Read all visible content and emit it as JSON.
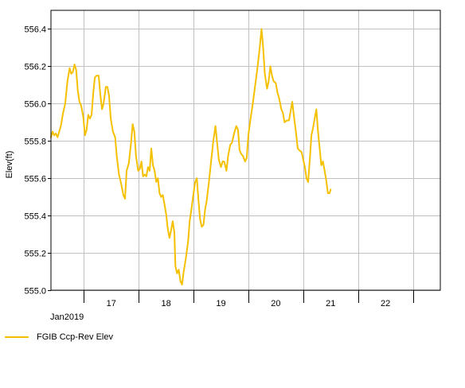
{
  "chart_data": {
    "type": "line",
    "ylabel": "Elev(ft)",
    "xlabel": "",
    "ylim": [
      555.0,
      556.5
    ],
    "y_ticks": [
      555.0,
      555.2,
      555.4,
      555.6,
      555.8,
      556.0,
      556.2,
      556.4
    ],
    "y_tick_labels": [
      "555.0",
      "555.2",
      "555.4",
      "555.6",
      "555.8",
      "556.0",
      "556.2",
      "556.4"
    ],
    "xlim": [
      16.4,
      23.5
    ],
    "x_day_labels": [
      "17",
      "18",
      "19",
      "20",
      "21",
      "22"
    ],
    "x_month_label": "Jan2019",
    "grid": true,
    "legend_position": "bottom-left",
    "series": [
      {
        "name": "FGIB Ccp-Rev Elev",
        "color": "#F5C000",
        "points": [
          [
            16.4,
            555.82
          ],
          [
            16.43,
            555.85
          ],
          [
            16.46,
            555.83
          ],
          [
            16.49,
            555.84
          ],
          [
            16.52,
            555.82
          ],
          [
            16.58,
            555.88
          ],
          [
            16.62,
            555.95
          ],
          [
            16.66,
            556.0
          ],
          [
            16.7,
            556.12
          ],
          [
            16.74,
            556.19
          ],
          [
            16.77,
            556.16
          ],
          [
            16.8,
            556.17
          ],
          [
            16.83,
            556.21
          ],
          [
            16.86,
            556.18
          ],
          [
            16.89,
            556.07
          ],
          [
            16.92,
            556.01
          ],
          [
            16.95,
            555.99
          ],
          [
            16.99,
            555.93
          ],
          [
            17.02,
            555.83
          ],
          [
            17.05,
            555.86
          ],
          [
            17.08,
            555.94
          ],
          [
            17.11,
            555.92
          ],
          [
            17.14,
            555.94
          ],
          [
            17.17,
            556.05
          ],
          [
            17.2,
            556.14
          ],
          [
            17.23,
            556.15
          ],
          [
            17.27,
            556.15
          ],
          [
            17.3,
            556.05
          ],
          [
            17.33,
            555.97
          ],
          [
            17.36,
            556.0
          ],
          [
            17.4,
            556.09
          ],
          [
            17.43,
            556.09
          ],
          [
            17.46,
            556.04
          ],
          [
            17.49,
            555.92
          ],
          [
            17.53,
            555.85
          ],
          [
            17.57,
            555.82
          ],
          [
            17.6,
            555.72
          ],
          [
            17.64,
            555.62
          ],
          [
            17.68,
            555.57
          ],
          [
            17.72,
            555.51
          ],
          [
            17.75,
            555.49
          ],
          [
            17.78,
            555.64
          ],
          [
            17.82,
            555.68
          ],
          [
            17.86,
            555.79
          ],
          [
            17.89,
            555.89
          ],
          [
            17.92,
            555.85
          ],
          [
            17.95,
            555.72
          ],
          [
            17.99,
            555.64
          ],
          [
            18.02,
            555.65
          ],
          [
            18.05,
            555.69
          ],
          [
            18.08,
            555.61
          ],
          [
            18.11,
            555.62
          ],
          [
            18.14,
            555.61
          ],
          [
            18.17,
            555.66
          ],
          [
            18.2,
            555.64
          ],
          [
            18.23,
            555.76
          ],
          [
            18.26,
            555.67
          ],
          [
            18.29,
            555.64
          ],
          [
            18.32,
            555.58
          ],
          [
            18.35,
            555.6
          ],
          [
            18.38,
            555.52
          ],
          [
            18.41,
            555.5
          ],
          [
            18.44,
            555.51
          ],
          [
            18.47,
            555.46
          ],
          [
            18.5,
            555.41
          ],
          [
            18.53,
            555.33
          ],
          [
            18.56,
            555.28
          ],
          [
            18.59,
            555.32
          ],
          [
            18.62,
            555.37
          ],
          [
            18.65,
            555.31
          ],
          [
            18.67,
            555.13
          ],
          [
            18.7,
            555.09
          ],
          [
            18.73,
            555.11
          ],
          [
            18.76,
            555.05
          ],
          [
            18.79,
            555.03
          ],
          [
            18.82,
            555.1
          ],
          [
            18.86,
            555.17
          ],
          [
            18.9,
            555.26
          ],
          [
            18.93,
            555.37
          ],
          [
            18.96,
            555.43
          ],
          [
            19.0,
            555.52
          ],
          [
            19.03,
            555.58
          ],
          [
            19.06,
            555.6
          ],
          [
            19.09,
            555.48
          ],
          [
            19.12,
            555.38
          ],
          [
            19.15,
            555.34
          ],
          [
            19.18,
            555.35
          ],
          [
            19.21,
            555.43
          ],
          [
            19.24,
            555.48
          ],
          [
            19.28,
            555.58
          ],
          [
            19.32,
            555.69
          ],
          [
            19.36,
            555.8
          ],
          [
            19.4,
            555.88
          ],
          [
            19.43,
            555.79
          ],
          [
            19.46,
            555.7
          ],
          [
            19.5,
            555.66
          ],
          [
            19.53,
            555.69
          ],
          [
            19.56,
            555.69
          ],
          [
            19.6,
            555.64
          ],
          [
            19.63,
            555.72
          ],
          [
            19.67,
            555.78
          ],
          [
            19.7,
            555.79
          ],
          [
            19.74,
            555.84
          ],
          [
            19.78,
            555.88
          ],
          [
            19.81,
            555.86
          ],
          [
            19.84,
            555.75
          ],
          [
            19.87,
            555.73
          ],
          [
            19.9,
            555.72
          ],
          [
            19.94,
            555.69
          ],
          [
            19.97,
            555.71
          ],
          [
            20.0,
            555.83
          ],
          [
            20.04,
            555.92
          ],
          [
            20.08,
            556.0
          ],
          [
            20.12,
            556.09
          ],
          [
            20.16,
            556.18
          ],
          [
            20.2,
            556.28
          ],
          [
            20.24,
            556.4
          ],
          [
            20.27,
            556.3
          ],
          [
            20.3,
            556.16
          ],
          [
            20.34,
            556.08
          ],
          [
            20.37,
            556.12
          ],
          [
            20.4,
            556.2
          ],
          [
            20.43,
            556.15
          ],
          [
            20.46,
            556.12
          ],
          [
            20.5,
            556.11
          ],
          [
            20.53,
            556.06
          ],
          [
            20.56,
            556.03
          ],
          [
            20.6,
            555.97
          ],
          [
            20.63,
            555.95
          ],
          [
            20.66,
            555.9
          ],
          [
            20.7,
            555.91
          ],
          [
            20.74,
            555.91
          ],
          [
            20.77,
            555.96
          ],
          [
            20.8,
            556.01
          ],
          [
            20.84,
            555.91
          ],
          [
            20.87,
            555.84
          ],
          [
            20.9,
            555.76
          ],
          [
            20.93,
            555.75
          ],
          [
            20.97,
            555.74
          ],
          [
            21.0,
            555.7
          ],
          [
            21.03,
            555.66
          ],
          [
            21.06,
            555.6
          ],
          [
            21.09,
            555.58
          ],
          [
            21.12,
            555.7
          ],
          [
            21.15,
            555.83
          ],
          [
            21.18,
            555.87
          ],
          [
            21.22,
            555.94
          ],
          [
            21.24,
            555.97
          ],
          [
            21.27,
            555.85
          ],
          [
            21.3,
            555.76
          ],
          [
            21.33,
            555.67
          ],
          [
            21.36,
            555.69
          ],
          [
            21.39,
            555.64
          ],
          [
            21.42,
            555.59
          ],
          [
            21.45,
            555.52
          ],
          [
            21.48,
            555.52
          ],
          [
            21.5,
            555.54
          ]
        ]
      }
    ]
  },
  "legend": {
    "items": [
      {
        "label": "FGIB Ccp-Rev Elev",
        "color": "#F5C000"
      }
    ]
  }
}
